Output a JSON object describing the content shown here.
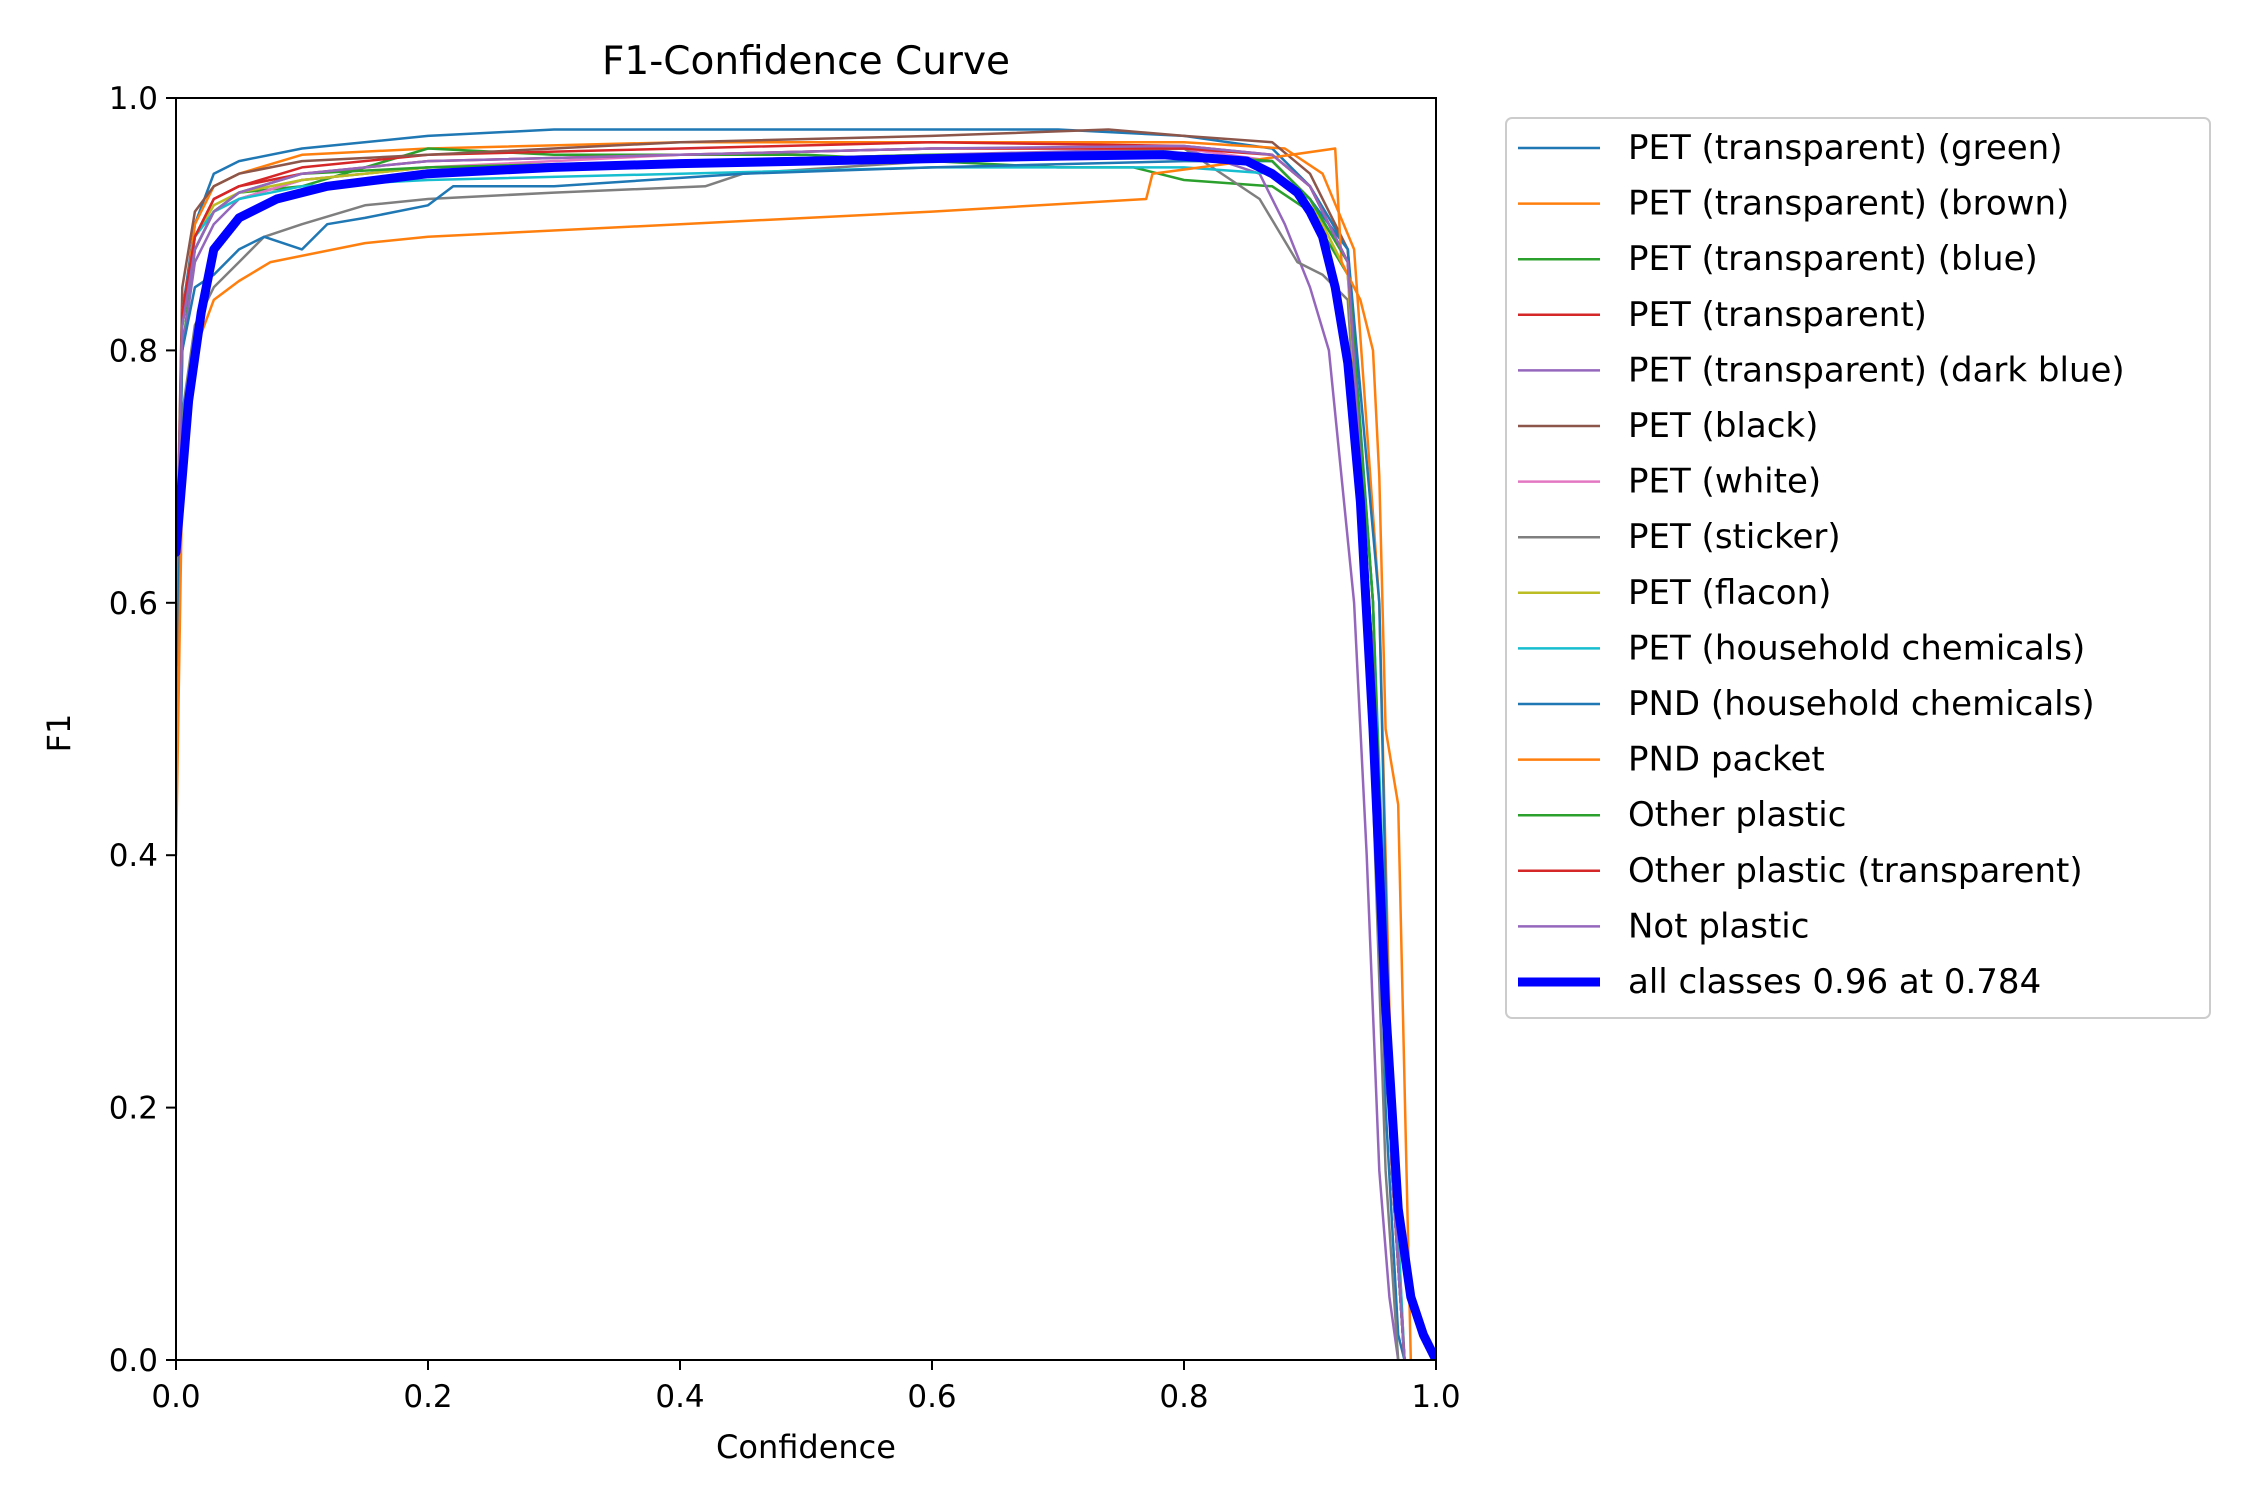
{
  "chart_data": {
    "type": "line",
    "title": "F1-Confidence Curve",
    "xlabel": "Confidence",
    "ylabel": "F1",
    "xlim": [
      0,
      1
    ],
    "ylim": [
      0,
      1
    ],
    "x_ticks": [
      0.0,
      0.2,
      0.4,
      0.6,
      0.8,
      1.0
    ],
    "y_ticks": [
      0.0,
      0.2,
      0.4,
      0.6,
      0.8,
      1.0
    ],
    "x_tick_labels": [
      "0.0",
      "0.2",
      "0.4",
      "0.6",
      "0.8",
      "1.0"
    ],
    "y_tick_labels": [
      "0.0",
      "0.2",
      "0.4",
      "0.6",
      "0.8",
      "1.0"
    ],
    "grid": false,
    "legend_position": "outside-right-top",
    "series": [
      {
        "name": "PET (transparent) (green)",
        "color": "#1f77b4",
        "x": [
          0,
          0.005,
          0.015,
          0.03,
          0.05,
          0.1,
          0.2,
          0.3,
          0.5,
          0.7,
          0.8,
          0.87,
          0.9,
          0.93,
          0.95,
          0.96,
          0.97,
          0.975
        ],
        "y": [
          0.6,
          0.83,
          0.9,
          0.94,
          0.95,
          0.96,
          0.97,
          0.975,
          0.975,
          0.975,
          0.97,
          0.96,
          0.93,
          0.88,
          0.6,
          0.2,
          0.02,
          0
        ]
      },
      {
        "name": "PET (transparent) (brown)",
        "color": "#ff7f0e",
        "x": [
          0,
          0.005,
          0.015,
          0.03,
          0.05,
          0.1,
          0.2,
          0.4,
          0.6,
          0.8,
          0.88,
          0.91,
          0.935,
          0.955,
          0.965,
          0.975
        ],
        "y": [
          0.55,
          0.82,
          0.9,
          0.93,
          0.94,
          0.955,
          0.96,
          0.965,
          0.965,
          0.965,
          0.96,
          0.94,
          0.88,
          0.6,
          0.2,
          0
        ]
      },
      {
        "name": "PET (transparent) (blue)",
        "color": "#2ca02c",
        "x": [
          0,
          0.005,
          0.015,
          0.03,
          0.05,
          0.1,
          0.2,
          0.3,
          0.5,
          0.7,
          0.76,
          0.8,
          0.87,
          0.9,
          0.93,
          0.95,
          0.965,
          0.975
        ],
        "y": [
          0.6,
          0.8,
          0.88,
          0.91,
          0.925,
          0.93,
          0.96,
          0.955,
          0.955,
          0.945,
          0.945,
          0.935,
          0.93,
          0.91,
          0.86,
          0.6,
          0.15,
          0
        ]
      },
      {
        "name": "PET (transparent)",
        "color": "#d62728",
        "x": [
          0,
          0.005,
          0.015,
          0.03,
          0.05,
          0.1,
          0.2,
          0.4,
          0.6,
          0.8,
          0.87,
          0.9,
          0.93,
          0.95,
          0.965,
          0.975
        ],
        "y": [
          0.6,
          0.82,
          0.89,
          0.92,
          0.93,
          0.945,
          0.955,
          0.96,
          0.965,
          0.962,
          0.955,
          0.93,
          0.87,
          0.55,
          0.15,
          0
        ]
      },
      {
        "name": "PET (transparent) (dark blue)",
        "color": "#9467bd",
        "x": [
          0,
          0.005,
          0.015,
          0.03,
          0.05,
          0.1,
          0.2,
          0.4,
          0.6,
          0.8,
          0.86,
          0.88,
          0.9,
          0.915,
          0.925,
          0.935,
          0.945,
          0.955,
          0.963,
          0.97
        ],
        "y": [
          0.55,
          0.8,
          0.87,
          0.9,
          0.92,
          0.935,
          0.945,
          0.95,
          0.955,
          0.96,
          0.94,
          0.9,
          0.85,
          0.8,
          0.7,
          0.6,
          0.4,
          0.15,
          0.05,
          0
        ]
      },
      {
        "name": "PET (black)",
        "color": "#8c564b",
        "x": [
          0,
          0.005,
          0.015,
          0.03,
          0.05,
          0.1,
          0.2,
          0.4,
          0.6,
          0.74,
          0.8,
          0.87,
          0.9,
          0.93,
          0.95,
          0.965,
          0.975
        ],
        "y": [
          0.6,
          0.85,
          0.91,
          0.93,
          0.94,
          0.95,
          0.955,
          0.965,
          0.97,
          0.975,
          0.97,
          0.965,
          0.94,
          0.88,
          0.55,
          0.15,
          0
        ]
      },
      {
        "name": "PET (white)",
        "color": "#e377c2",
        "x": [
          0,
          0.005,
          0.015,
          0.03,
          0.05,
          0.1,
          0.2,
          0.4,
          0.6,
          0.8,
          0.87,
          0.9,
          0.93,
          0.95,
          0.965,
          0.975
        ],
        "y": [
          0.6,
          0.82,
          0.88,
          0.91,
          0.92,
          0.935,
          0.945,
          0.955,
          0.96,
          0.96,
          0.95,
          0.92,
          0.86,
          0.55,
          0.15,
          0
        ]
      },
      {
        "name": "PET (sticker)",
        "color": "#7f7f7f",
        "x": [
          0,
          0.005,
          0.015,
          0.03,
          0.05,
          0.07,
          0.1,
          0.15,
          0.2,
          0.3,
          0.42,
          0.45,
          0.6,
          0.8,
          0.86,
          0.89,
          0.91,
          0.93,
          0.945,
          0.96,
          0.97
        ],
        "y": [
          0.5,
          0.75,
          0.82,
          0.85,
          0.87,
          0.89,
          0.9,
          0.915,
          0.92,
          0.925,
          0.93,
          0.94,
          0.95,
          0.96,
          0.92,
          0.87,
          0.86,
          0.84,
          0.6,
          0.15,
          0
        ]
      },
      {
        "name": "PET (flacon)",
        "color": "#bcbd22",
        "x": [
          0,
          0.005,
          0.015,
          0.03,
          0.05,
          0.1,
          0.2,
          0.4,
          0.6,
          0.8,
          0.87,
          0.9,
          0.93,
          0.95,
          0.965,
          0.975
        ],
        "y": [
          0.6,
          0.83,
          0.89,
          0.915,
          0.925,
          0.935,
          0.945,
          0.95,
          0.955,
          0.955,
          0.95,
          0.92,
          0.86,
          0.55,
          0.15,
          0
        ]
      },
      {
        "name": "PET (household chemicals)",
        "color": "#17becf",
        "x": [
          0,
          0.005,
          0.015,
          0.03,
          0.05,
          0.1,
          0.2,
          0.4,
          0.6,
          0.8,
          0.87,
          0.9,
          0.93,
          0.95,
          0.965,
          0.975
        ],
        "y": [
          0.6,
          0.83,
          0.89,
          0.91,
          0.92,
          0.93,
          0.935,
          0.94,
          0.945,
          0.945,
          0.94,
          0.92,
          0.87,
          0.6,
          0.2,
          0
        ]
      },
      {
        "name": "PND (household chemicals)",
        "color": "#1f77b4",
        "x": [
          0,
          0.005,
          0.015,
          0.03,
          0.05,
          0.07,
          0.1,
          0.12,
          0.15,
          0.2,
          0.22,
          0.3,
          0.45,
          0.6,
          0.8,
          0.87,
          0.9,
          0.93,
          0.955,
          0.965,
          0.975
        ],
        "y": [
          0.55,
          0.8,
          0.85,
          0.86,
          0.88,
          0.89,
          0.88,
          0.9,
          0.905,
          0.915,
          0.93,
          0.93,
          0.94,
          0.945,
          0.95,
          0.95,
          0.92,
          0.88,
          0.6,
          0.15,
          0
        ]
      },
      {
        "name": "PND packet",
        "color": "#ff7f0e",
        "x": [
          0,
          0.005,
          0.015,
          0.03,
          0.05,
          0.075,
          0.15,
          0.2,
          0.4,
          0.6,
          0.77,
          0.775,
          0.85,
          0.92,
          0.925,
          0.94,
          0.95,
          0.955,
          0.96,
          0.97,
          0.98
        ],
        "y": [
          0.4,
          0.7,
          0.8,
          0.84,
          0.855,
          0.87,
          0.885,
          0.89,
          0.9,
          0.91,
          0.92,
          0.94,
          0.95,
          0.96,
          0.87,
          0.84,
          0.8,
          0.7,
          0.5,
          0.44,
          0
        ]
      },
      {
        "name": "Other plastic",
        "color": "#2ca02c",
        "x": [
          0,
          0.005,
          0.015,
          0.03,
          0.05,
          0.1,
          0.2,
          0.4,
          0.6,
          0.8,
          0.87,
          0.9,
          0.93,
          0.95,
          0.965,
          0.975
        ],
        "y": [
          0.6,
          0.82,
          0.88,
          0.91,
          0.925,
          0.94,
          0.945,
          0.95,
          0.955,
          0.955,
          0.95,
          0.92,
          0.87,
          0.6,
          0.15,
          0
        ]
      },
      {
        "name": "Other plastic (transparent)",
        "color": "#d62728",
        "x": [
          0,
          0.005,
          0.015,
          0.03,
          0.05,
          0.1,
          0.2,
          0.4,
          0.6,
          0.8,
          0.87,
          0.9,
          0.93,
          0.95,
          0.965,
          0.975
        ],
        "y": [
          0.6,
          0.83,
          0.89,
          0.92,
          0.93,
          0.94,
          0.95,
          0.955,
          0.96,
          0.96,
          0.955,
          0.93,
          0.87,
          0.55,
          0.15,
          0
        ]
      },
      {
        "name": "Not plastic",
        "color": "#9467bd",
        "x": [
          0,
          0.005,
          0.015,
          0.03,
          0.05,
          0.1,
          0.2,
          0.4,
          0.6,
          0.8,
          0.87,
          0.9,
          0.93,
          0.95,
          0.965,
          0.975
        ],
        "y": [
          0.6,
          0.82,
          0.88,
          0.91,
          0.925,
          0.94,
          0.95,
          0.955,
          0.96,
          0.962,
          0.955,
          0.93,
          0.87,
          0.55,
          0.15,
          0
        ]
      },
      {
        "name": "all classes 0.96 at 0.784",
        "color": "#0000ff",
        "bold": true,
        "x": [
          0,
          0.005,
          0.01,
          0.02,
          0.03,
          0.05,
          0.08,
          0.12,
          0.2,
          0.3,
          0.4,
          0.5,
          0.6,
          0.7,
          0.784,
          0.85,
          0.87,
          0.89,
          0.9,
          0.91,
          0.92,
          0.93,
          0.94,
          0.95,
          0.96,
          0.97,
          0.98,
          0.99,
          1.0
        ],
        "y": [
          0.64,
          0.7,
          0.76,
          0.83,
          0.88,
          0.905,
          0.92,
          0.93,
          0.94,
          0.945,
          0.948,
          0.95,
          0.952,
          0.954,
          0.955,
          0.95,
          0.94,
          0.925,
          0.91,
          0.89,
          0.85,
          0.79,
          0.68,
          0.5,
          0.28,
          0.12,
          0.05,
          0.02,
          0.0
        ]
      }
    ]
  }
}
